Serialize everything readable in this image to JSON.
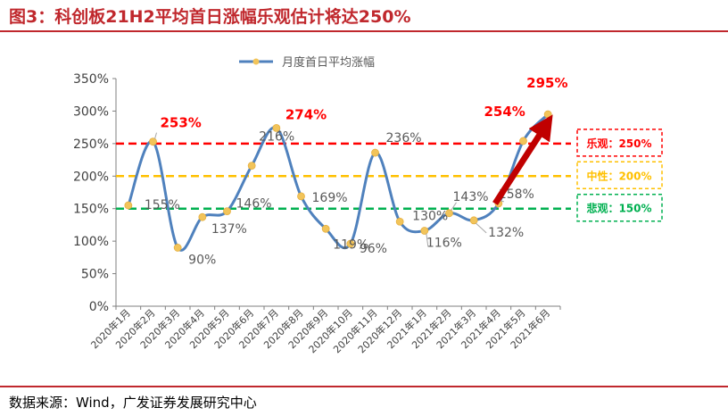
{
  "figure_title": "图3：科创板21H2平均首日涨幅乐观估计将达250%",
  "source": "数据来源：Wind，广发证券发展研究中心",
  "colors": {
    "title": "#c0282d",
    "series_line": "#4f81bd",
    "marker": "#f2c45a",
    "bull": "#ff0000",
    "neutral": "#ffc000",
    "bear": "#00b050",
    "arrow": "#c00000"
  },
  "chart_data": {
    "type": "line",
    "title": "",
    "legend": "月度首日平均涨幅",
    "legend_position": "top-center",
    "categories": [
      "2020年1月",
      "2020年2月",
      "2020年3月",
      "2020年4月",
      "2020年5月",
      "2020年6月",
      "2020年7月",
      "2020年8月",
      "2020年9月",
      "2020年10月",
      "2020年11月",
      "2020年12月",
      "2021年1月",
      "2021年2月",
      "2021年3月",
      "2021年4月",
      "2021年5月",
      "2021年6月"
    ],
    "values": [
      155,
      253,
      90,
      137,
      146,
      216,
      274,
      169,
      119,
      96,
      236,
      130,
      116,
      143,
      132,
      158,
      254,
      295
    ],
    "data_labels": [
      "155%",
      "253%",
      "90%",
      "137%",
      "146%",
      "216%",
      "274%",
      "169%",
      "119%",
      "96%",
      "236%",
      "130%",
      "116%",
      "143%",
      "132%",
      "158%",
      "254%",
      "295%"
    ],
    "highlighted_labels": [
      1,
      6,
      16,
      17
    ],
    "ylim": [
      0,
      350
    ],
    "yticks": [
      "0%",
      "50%",
      "100%",
      "150%",
      "200%",
      "250%",
      "300%",
      "350%"
    ],
    "xlabel": "",
    "ylabel": "",
    "grid": false,
    "reference_lines": [
      {
        "name": "bull",
        "value": 250,
        "label": "乐观：250%"
      },
      {
        "name": "neutral",
        "value": 200,
        "label": "中性：200%"
      },
      {
        "name": "bear",
        "value": 150,
        "label": "悲观：150%"
      }
    ]
  }
}
